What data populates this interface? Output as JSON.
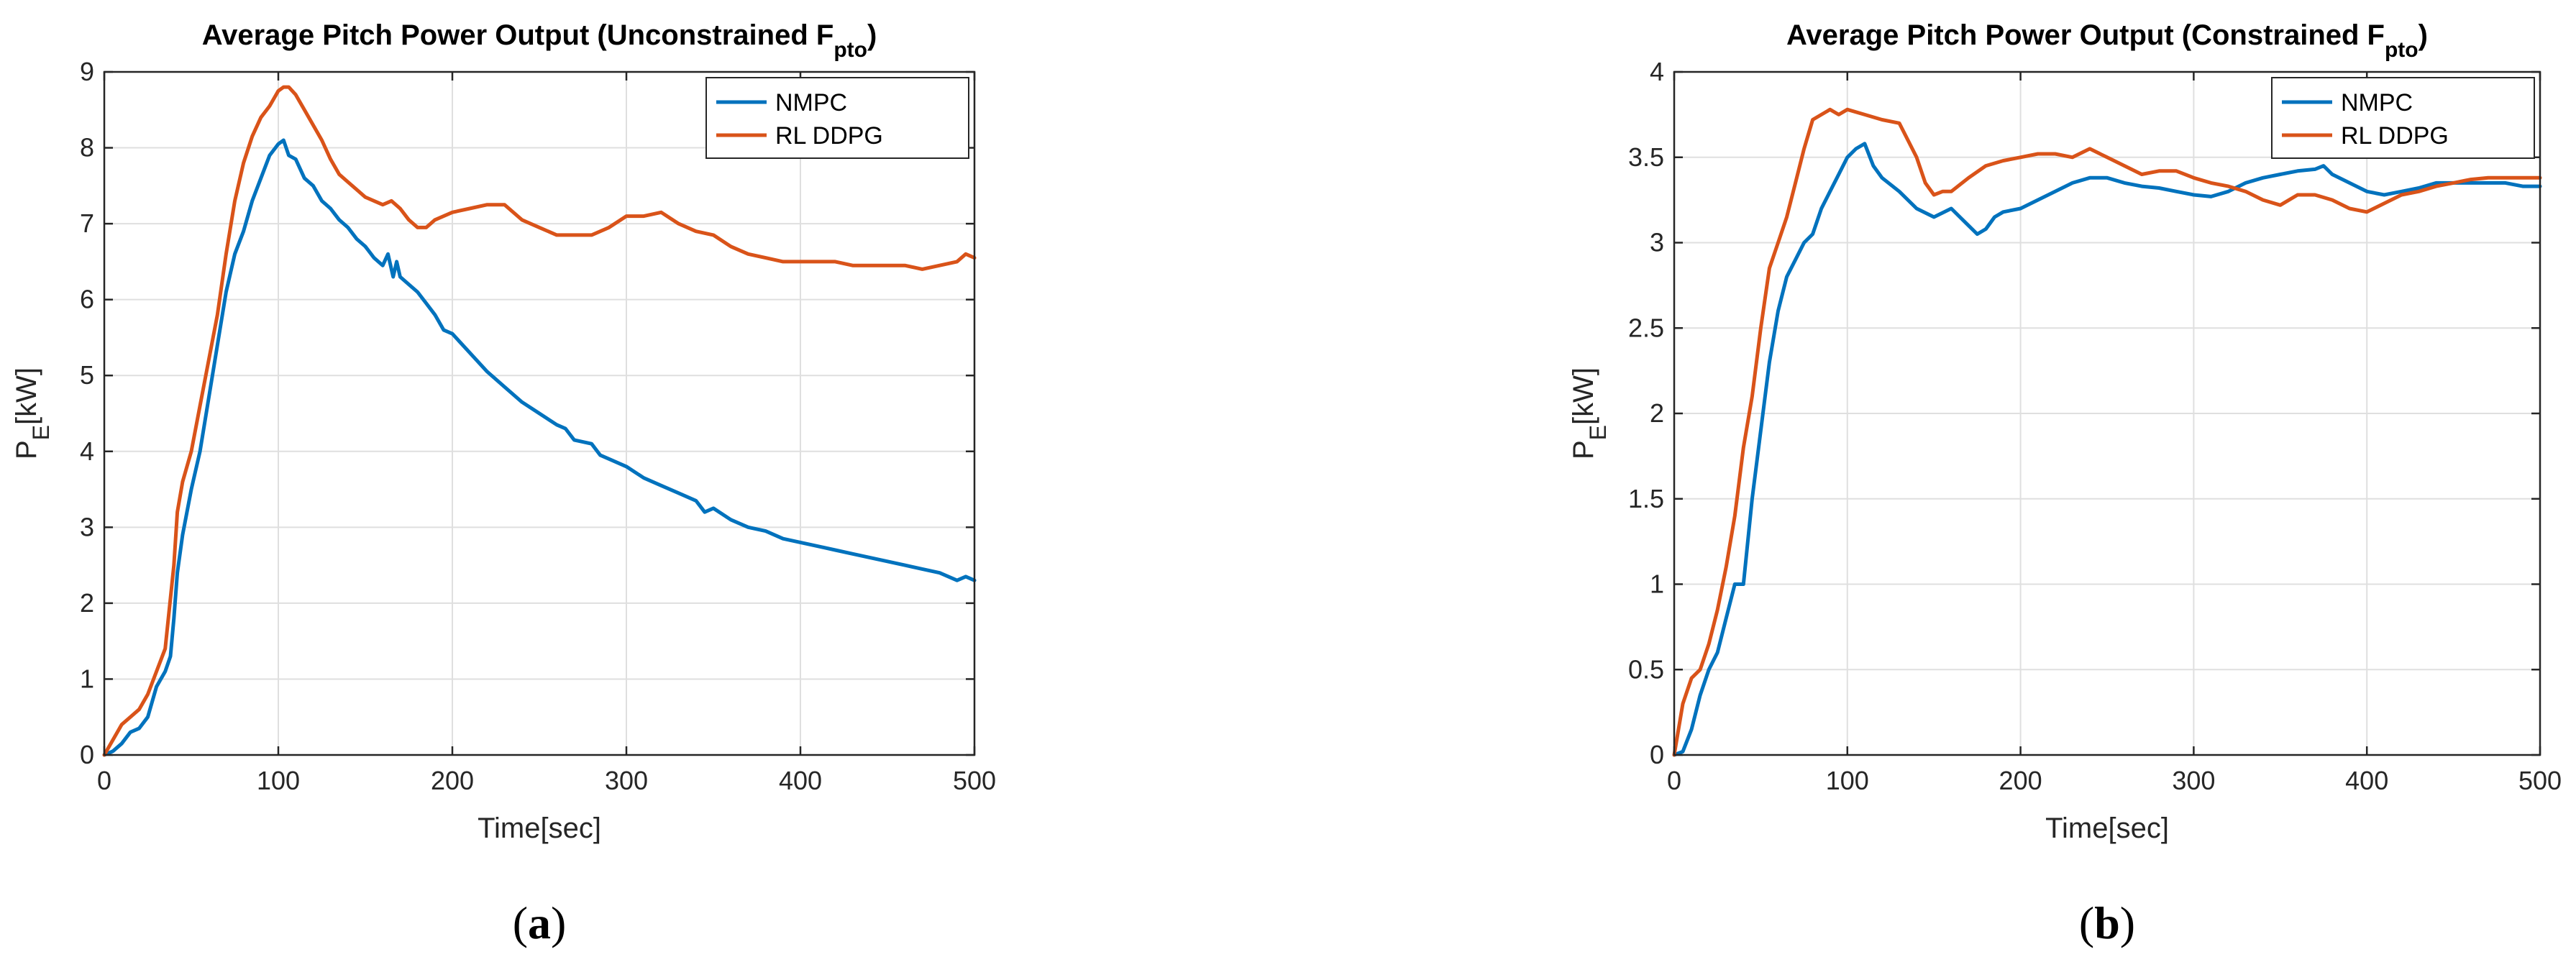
{
  "chart_data": [
    {
      "type": "line",
      "title": "Average Pitch Power Output (Unconstrained F",
      "title_sub": "pto",
      "title_close": ")",
      "xlabel": "Time[sec]",
      "ylabel_main": "P",
      "ylabel_sub": "E",
      "ylabel_unit": "[kW]",
      "xlim": [
        0,
        500
      ],
      "ylim": [
        0,
        9
      ],
      "xticks": [
        0,
        100,
        200,
        300,
        400,
        500
      ],
      "yticks": [
        0,
        1,
        2,
        3,
        4,
        5,
        6,
        7,
        8,
        9
      ],
      "grid": true,
      "legend_position": "top-right",
      "panel_label": "a",
      "series": [
        {
          "name": "NMPC",
          "color": "#0072BD",
          "x": [
            0,
            5,
            10,
            15,
            20,
            25,
            30,
            35,
            38,
            40,
            42,
            45,
            50,
            55,
            60,
            65,
            70,
            75,
            80,
            85,
            90,
            95,
            100,
            103,
            106,
            110,
            115,
            120,
            125,
            130,
            135,
            140,
            145,
            150,
            155,
            160,
            163,
            166,
            168,
            170,
            175,
            180,
            185,
            190,
            195,
            200,
            210,
            220,
            230,
            240,
            250,
            260,
            265,
            270,
            280,
            285,
            290,
            300,
            310,
            320,
            330,
            340,
            345,
            350,
            360,
            370,
            380,
            390,
            400,
            410,
            420,
            430,
            440,
            450,
            460,
            470,
            480,
            485,
            490,
            495,
            500
          ],
          "y": [
            0,
            0.05,
            0.15,
            0.3,
            0.35,
            0.5,
            0.9,
            1.1,
            1.3,
            1.8,
            2.4,
            2.9,
            3.5,
            4.0,
            4.7,
            5.4,
            6.1,
            6.6,
            6.9,
            7.3,
            7.6,
            7.9,
            8.05,
            8.1,
            7.9,
            7.85,
            7.6,
            7.5,
            7.3,
            7.2,
            7.05,
            6.95,
            6.8,
            6.7,
            6.55,
            6.45,
            6.6,
            6.3,
            6.5,
            6.3,
            6.2,
            6.1,
            5.95,
            5.8,
            5.6,
            5.55,
            5.3,
            5.05,
            4.85,
            4.65,
            4.5,
            4.35,
            4.3,
            4.15,
            4.1,
            3.95,
            3.9,
            3.8,
            3.65,
            3.55,
            3.45,
            3.35,
            3.2,
            3.25,
            3.1,
            3.0,
            2.95,
            2.85,
            2.8,
            2.75,
            2.7,
            2.65,
            2.6,
            2.55,
            2.5,
            2.45,
            2.4,
            2.35,
            2.3,
            2.35,
            2.3
          ]
        },
        {
          "name": "RL DDPG",
          "color": "#D95319",
          "x": [
            0,
            5,
            10,
            15,
            20,
            25,
            30,
            35,
            40,
            42,
            45,
            50,
            55,
            60,
            65,
            70,
            75,
            80,
            85,
            90,
            95,
            100,
            103,
            106,
            110,
            115,
            120,
            125,
            130,
            135,
            140,
            145,
            150,
            155,
            160,
            165,
            170,
            175,
            180,
            185,
            190,
            200,
            210,
            220,
            230,
            240,
            250,
            260,
            270,
            280,
            290,
            300,
            310,
            320,
            330,
            340,
            350,
            360,
            370,
            380,
            390,
            400,
            410,
            420,
            430,
            440,
            450,
            460,
            470,
            480,
            490,
            495,
            500
          ],
          "y": [
            0,
            0.2,
            0.4,
            0.5,
            0.6,
            0.8,
            1.1,
            1.4,
            2.5,
            3.2,
            3.6,
            4.0,
            4.6,
            5.2,
            5.8,
            6.6,
            7.3,
            7.8,
            8.15,
            8.4,
            8.55,
            8.75,
            8.8,
            8.8,
            8.7,
            8.5,
            8.3,
            8.1,
            7.85,
            7.65,
            7.55,
            7.45,
            7.35,
            7.3,
            7.25,
            7.3,
            7.2,
            7.05,
            6.95,
            6.95,
            7.05,
            7.15,
            7.2,
            7.25,
            7.25,
            7.05,
            6.95,
            6.85,
            6.85,
            6.85,
            6.95,
            7.1,
            7.1,
            7.15,
            7.0,
            6.9,
            6.85,
            6.7,
            6.6,
            6.55,
            6.5,
            6.5,
            6.5,
            6.5,
            6.45,
            6.45,
            6.45,
            6.45,
            6.4,
            6.45,
            6.5,
            6.6,
            6.55
          ]
        }
      ]
    },
    {
      "type": "line",
      "title": "Average Pitch Power Output (Constrained F",
      "title_sub": "pto",
      "title_close": ")",
      "xlabel": "Time[sec]",
      "ylabel_main": "P",
      "ylabel_sub": "E",
      "ylabel_unit": "[kW]",
      "xlim": [
        0,
        500
      ],
      "ylim": [
        0,
        4
      ],
      "xticks": [
        0,
        100,
        200,
        300,
        400,
        500
      ],
      "yticks": [
        0,
        0.5,
        1,
        1.5,
        2,
        2.5,
        3,
        3.5,
        4
      ],
      "grid": true,
      "legend_position": "top-right",
      "panel_label": "b",
      "series": [
        {
          "name": "NMPC",
          "color": "#0072BD",
          "x": [
            0,
            5,
            10,
            15,
            20,
            25,
            30,
            35,
            40,
            45,
            50,
            55,
            60,
            65,
            70,
            75,
            80,
            85,
            90,
            95,
            100,
            105,
            110,
            115,
            120,
            130,
            140,
            150,
            160,
            165,
            170,
            175,
            180,
            185,
            190,
            200,
            210,
            220,
            230,
            240,
            250,
            260,
            270,
            280,
            290,
            300,
            310,
            320,
            330,
            340,
            350,
            360,
            370,
            375,
            380,
            390,
            400,
            410,
            420,
            430,
            440,
            450,
            460,
            470,
            480,
            490,
            500
          ],
          "y": [
            0,
            0.02,
            0.15,
            0.35,
            0.5,
            0.6,
            0.8,
            1.0,
            1.0,
            1.5,
            1.9,
            2.3,
            2.6,
            2.8,
            2.9,
            3.0,
            3.05,
            3.2,
            3.3,
            3.4,
            3.5,
            3.55,
            3.58,
            3.45,
            3.38,
            3.3,
            3.2,
            3.15,
            3.2,
            3.15,
            3.1,
            3.05,
            3.08,
            3.15,
            3.18,
            3.2,
            3.25,
            3.3,
            3.35,
            3.38,
            3.38,
            3.35,
            3.33,
            3.32,
            3.3,
            3.28,
            3.27,
            3.3,
            3.35,
            3.38,
            3.4,
            3.42,
            3.43,
            3.45,
            3.4,
            3.35,
            3.3,
            3.28,
            3.3,
            3.32,
            3.35,
            3.35,
            3.35,
            3.35,
            3.35,
            3.33,
            3.33
          ]
        },
        {
          "name": "RL DDPG",
          "color": "#D95319",
          "x": [
            0,
            5,
            10,
            15,
            20,
            25,
            30,
            35,
            40,
            45,
            50,
            55,
            60,
            65,
            70,
            75,
            80,
            85,
            90,
            95,
            100,
            110,
            120,
            130,
            140,
            145,
            150,
            155,
            160,
            170,
            180,
            190,
            200,
            210,
            220,
            230,
            240,
            250,
            260,
            270,
            280,
            290,
            300,
            310,
            320,
            330,
            340,
            350,
            360,
            370,
            380,
            390,
            400,
            410,
            420,
            430,
            440,
            450,
            460,
            470,
            480,
            490,
            500
          ],
          "y": [
            0,
            0.3,
            0.45,
            0.5,
            0.65,
            0.85,
            1.1,
            1.4,
            1.8,
            2.1,
            2.5,
            2.85,
            3.0,
            3.15,
            3.35,
            3.55,
            3.72,
            3.75,
            3.78,
            3.75,
            3.78,
            3.75,
            3.72,
            3.7,
            3.5,
            3.35,
            3.28,
            3.3,
            3.3,
            3.38,
            3.45,
            3.48,
            3.5,
            3.52,
            3.52,
            3.5,
            3.55,
            3.5,
            3.45,
            3.4,
            3.42,
            3.42,
            3.38,
            3.35,
            3.33,
            3.3,
            3.25,
            3.22,
            3.28,
            3.28,
            3.25,
            3.2,
            3.18,
            3.23,
            3.28,
            3.3,
            3.33,
            3.35,
            3.37,
            3.38,
            3.38,
            3.38,
            3.38
          ]
        }
      ]
    }
  ]
}
